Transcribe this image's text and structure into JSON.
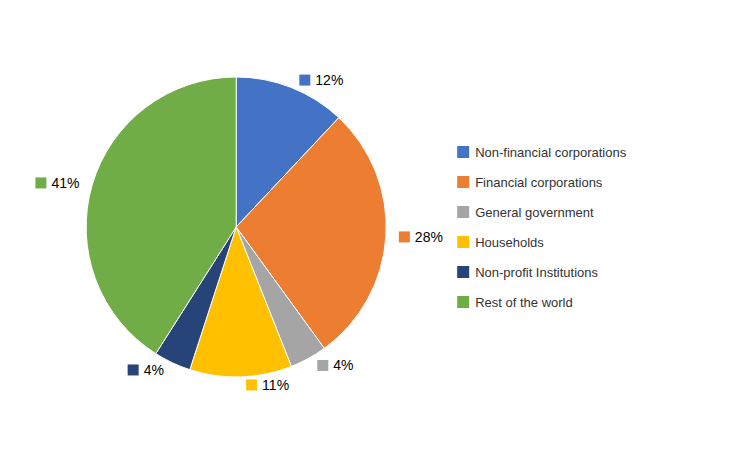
{
  "chart_data": {
    "type": "pie",
    "categories": [
      "Non-financial corporations",
      "Financial corporations",
      "General government",
      "Households",
      "Non-profit Institutions",
      "Rest of the world"
    ],
    "values": [
      12,
      28,
      4,
      11,
      4,
      41
    ],
    "value_labels": [
      "12%",
      "28%",
      "4%",
      "11%",
      "4%",
      "41%"
    ],
    "colors": [
      "#4472C4",
      "#ED7D31",
      "#A5A5A5",
      "#FFC000",
      "#264478",
      "#70AD47"
    ],
    "data_labels": true,
    "legend": "right"
  }
}
